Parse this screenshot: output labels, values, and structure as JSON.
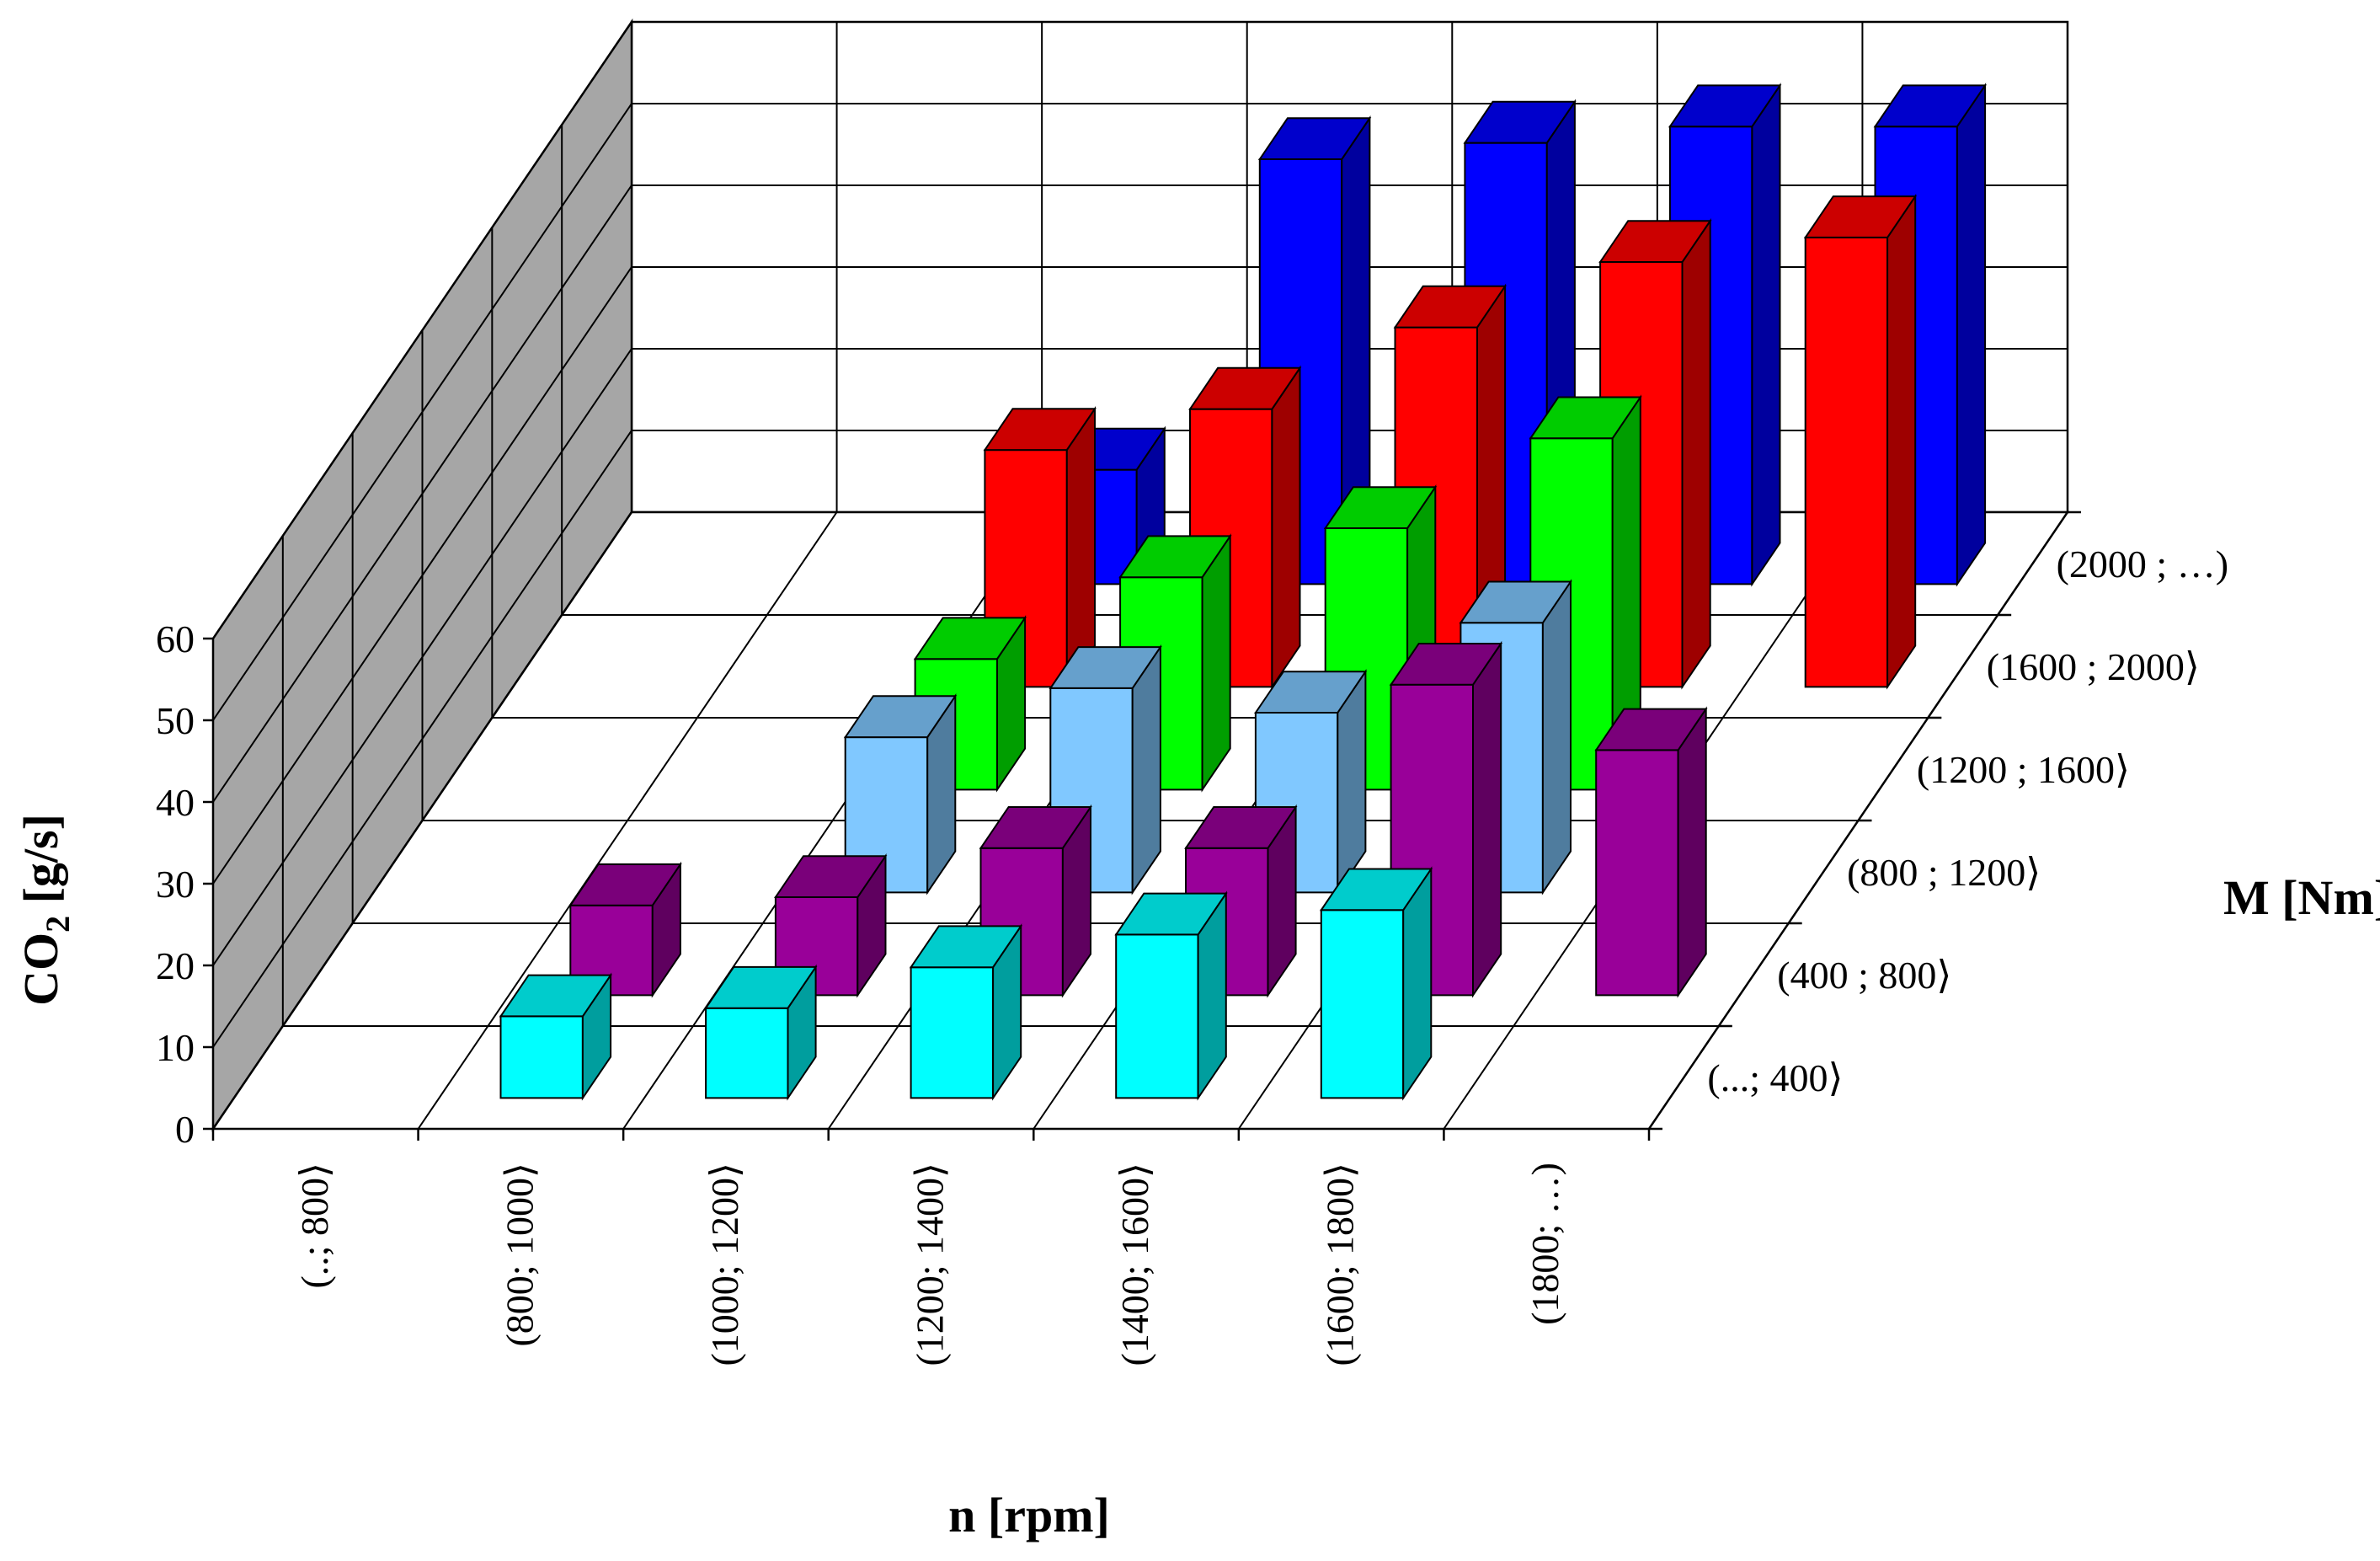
{
  "chart_data": {
    "type": "bar3d",
    "title": "",
    "ylabel": "CO",
    "ylabel_sub": "2",
    "ylabel_unit": " [g/s]",
    "xlabel": "n [rpm]",
    "zlabel": "M [Nm]",
    "ylim": [
      0,
      60
    ],
    "yticks": [
      "0",
      "10",
      "20",
      "30",
      "40",
      "50",
      "60"
    ],
    "categories": [
      "(..; 800⟩",
      "(800; 1000⟩",
      "(1000; 1200⟩",
      "(1200; 1400⟩",
      "(1400; 1600⟩",
      "(1600; 1800⟩",
      "(1800; …)"
    ],
    "depth_categories": [
      "(...; 400⟩",
      "(400 ; 800⟩",
      "(800 ; 1200⟩",
      "(1200 ; 1600⟩",
      "(1600 ; 2000⟩",
      "(2000 ; …)"
    ],
    "series": [
      {
        "name": "(...; 400⟩",
        "color": "#00ffff",
        "values": [
          null,
          10,
          11,
          16,
          20,
          23,
          null
        ]
      },
      {
        "name": "(400 ; 800⟩",
        "color": "#990099",
        "values": [
          null,
          11,
          12,
          18,
          18,
          38,
          30
        ]
      },
      {
        "name": "(800 ; 1200⟩",
        "color": "#80c8ff",
        "values": [
          null,
          null,
          19,
          25,
          22,
          33,
          null
        ]
      },
      {
        "name": "(1200 ; 1600⟩",
        "color": "#00ff00",
        "values": [
          null,
          null,
          16,
          26,
          32,
          43,
          null
        ]
      },
      {
        "name": "(1600 ; 2000⟩",
        "color": "#ff0000",
        "values": [
          null,
          null,
          29,
          34,
          44,
          52,
          55
        ]
      },
      {
        "name": "(2000 ; …)",
        "color": "#0000ff",
        "values": [
          null,
          null,
          14,
          52,
          54,
          56,
          56
        ]
      }
    ],
    "grid": true
  }
}
